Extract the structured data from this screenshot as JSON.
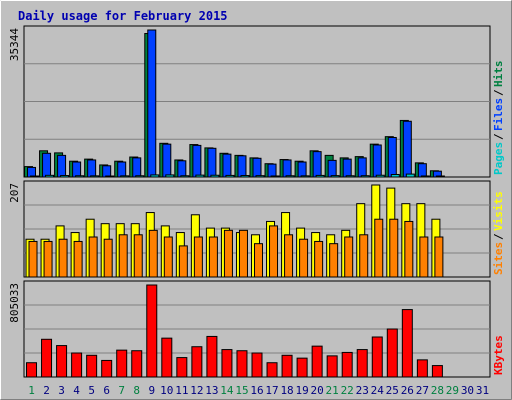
{
  "chart_data": {
    "type": "bar",
    "title": "Daily usage for February 2015",
    "days": [
      "1",
      "2",
      "3",
      "4",
      "5",
      "6",
      "7",
      "8",
      "9",
      "10",
      "11",
      "12",
      "13",
      "14",
      "15",
      "16",
      "17",
      "18",
      "19",
      "20",
      "21",
      "22",
      "23",
      "24",
      "25",
      "26",
      "27",
      "28",
      "29",
      "30",
      "31"
    ],
    "weekend_days": [
      "1",
      "7",
      "8",
      "14",
      "15",
      "21",
      "22",
      "28",
      "29"
    ],
    "colors": {
      "hits": "#008040",
      "files": "#0040ff",
      "pages": "#00c8c8",
      "visits": "#ffff00",
      "sites": "#ff8000",
      "kbytes": "#ff0000",
      "weekend_label": "#008040",
      "weekday_label": "#000080",
      "title": "#0000b0"
    },
    "panels": [
      {
        "id": "hits",
        "max_label": "35344",
        "ymax": 35344,
        "legend": [
          "Pages",
          "Files",
          "Hits"
        ],
        "series": [
          {
            "name": "Hits",
            "key": "hits",
            "values": [
              2500,
              6300,
              5800,
              3800,
              4300,
              2900,
              3800,
              4800,
              34500,
              8100,
              4100,
              7800,
              7000,
              5700,
              5200,
              4600,
              3200,
              4200,
              3800,
              6300,
              5200,
              4600,
              4900,
              7900,
              9700,
              13600,
              3400,
              1500,
              0,
              0,
              0
            ]
          },
          {
            "name": "Files",
            "key": "files",
            "values": [
              2300,
              5700,
              5200,
              3600,
              4100,
              2700,
              3600,
              4600,
              35344,
              7900,
              3900,
              7600,
              6900,
              5500,
              5100,
              4500,
              3100,
              4100,
              3600,
              6100,
              4000,
              4300,
              4600,
              7700,
              9500,
              13400,
              3200,
              1400,
              0,
              0,
              0
            ]
          },
          {
            "name": "Pages",
            "key": "pages",
            "values": [
              200,
              400,
              350,
              300,
              280,
              220,
              280,
              300,
              500,
              500,
              300,
              450,
              420,
              380,
              350,
              320,
              250,
              300,
              280,
              380,
              330,
              300,
              310,
              420,
              600,
              700,
              250,
              120,
              0,
              0,
              0
            ]
          }
        ]
      },
      {
        "id": "visits",
        "max_label": "207",
        "ymax": 207,
        "legend": [
          "Sites",
          "Visits"
        ],
        "series": [
          {
            "name": "Visits",
            "key": "visits",
            "values": [
              85,
              85,
              115,
              100,
              130,
              120,
              120,
              120,
              145,
              115,
              100,
              140,
              110,
              110,
              100,
              95,
              125,
              145,
              110,
              100,
              95,
              105,
              165,
              207,
              200,
              165,
              165,
              130,
              0,
              0,
              0
            ]
          },
          {
            "name": "Sites",
            "key": "sites",
            "values": [
              80,
              80,
              85,
              80,
              90,
              85,
              95,
              95,
              105,
              90,
              70,
              90,
              90,
              105,
              105,
              75,
              115,
              95,
              85,
              80,
              75,
              90,
              95,
              130,
              130,
              125,
              90,
              90,
              0,
              0,
              0
            ]
          }
        ]
      },
      {
        "id": "kbytes",
        "max_label": "805033",
        "ymax": 805033,
        "legend": [
          "KBytes"
        ],
        "series": [
          {
            "name": "KBytes",
            "key": "kbytes",
            "values": [
              125000,
              330000,
              275000,
              210000,
              190000,
              145000,
              235000,
              230000,
              805033,
              340000,
              170000,
              265000,
              355000,
              240000,
              230000,
              210000,
              125000,
              190000,
              165000,
              270000,
              185000,
              215000,
              240000,
              350000,
              420000,
              590000,
              150000,
              100000,
              0,
              0,
              0
            ]
          }
        ]
      }
    ]
  }
}
